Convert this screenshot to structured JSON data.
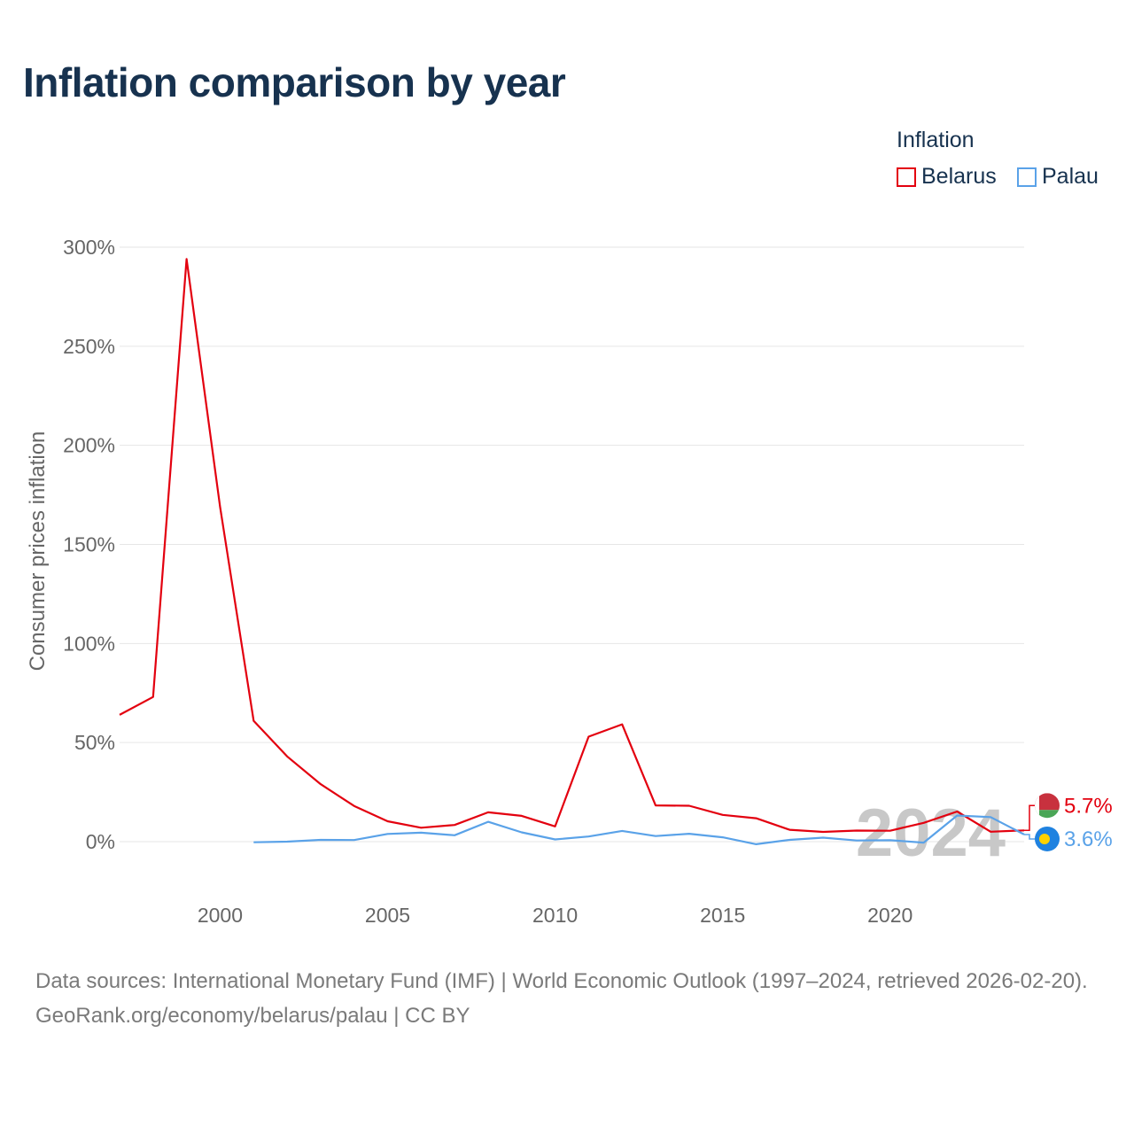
{
  "title": "Inflation comparison by year",
  "legend": {
    "title": "Inflation",
    "items": [
      {
        "label": "Belarus",
        "color": "#e3000f"
      },
      {
        "label": "Palau",
        "color": "#5aa2e8"
      }
    ]
  },
  "footer": {
    "sources": "Data sources: International Monetary Fund (IMF) | World Economic Outlook (1997–2024, retrieved 2026-02-20).",
    "credit": "GeoRank.org/economy/belarus/palau | CC BY"
  },
  "chart_data": {
    "type": "line",
    "title": "Inflation comparison by year",
    "xlabel": "",
    "ylabel": "Consumer prices inflation",
    "xlim": [
      1997,
      2024
    ],
    "ylim": [
      -25,
      310
    ],
    "yticks": [
      0,
      50,
      100,
      150,
      200,
      250,
      300
    ],
    "ytick_labels": [
      "0%",
      "50%",
      "100%",
      "150%",
      "200%",
      "250%",
      "300%"
    ],
    "xticks": [
      2000,
      2005,
      2010,
      2015,
      2020
    ],
    "xtick_labels": [
      "2000",
      "2005",
      "2010",
      "2015",
      "2020"
    ],
    "grid": true,
    "watermark": "2024",
    "series": [
      {
        "name": "Belarus",
        "color": "#e3000f",
        "end_label": "5.7%",
        "flag_colors": [
          "#c8313e",
          "#4aa657"
        ],
        "x": [
          1997,
          1998,
          1999,
          2000,
          2001,
          2002,
          2003,
          2004,
          2005,
          2006,
          2007,
          2008,
          2009,
          2010,
          2011,
          2012,
          2013,
          2014,
          2015,
          2016,
          2017,
          2018,
          2019,
          2020,
          2021,
          2022,
          2023,
          2024
        ],
        "y": [
          64,
          73,
          294,
          169,
          61,
          43,
          29,
          18,
          10.3,
          7,
          8.4,
          14.8,
          13,
          7.7,
          53,
          59.2,
          18.3,
          18.1,
          13.5,
          11.8,
          6,
          4.9,
          5.6,
          5.5,
          9.5,
          15.2,
          5,
          5.7
        ]
      },
      {
        "name": "Palau",
        "color": "#5aa2e8",
        "end_label": "3.6%",
        "flag_colors": [
          "#1f82e0",
          "#ffd200"
        ],
        "x": [
          2001,
          2002,
          2003,
          2004,
          2005,
          2006,
          2007,
          2008,
          2009,
          2010,
          2011,
          2012,
          2013,
          2014,
          2015,
          2016,
          2017,
          2018,
          2019,
          2020,
          2021,
          2022,
          2023,
          2024
        ],
        "y": [
          -0.3,
          0,
          0.9,
          0.8,
          3.9,
          4.5,
          3.2,
          10,
          4.7,
          1.1,
          2.6,
          5.4,
          2.8,
          4,
          2.2,
          -1.3,
          0.9,
          2,
          0.6,
          0.7,
          -0.5,
          13.2,
          12.4,
          3.6
        ]
      }
    ]
  }
}
